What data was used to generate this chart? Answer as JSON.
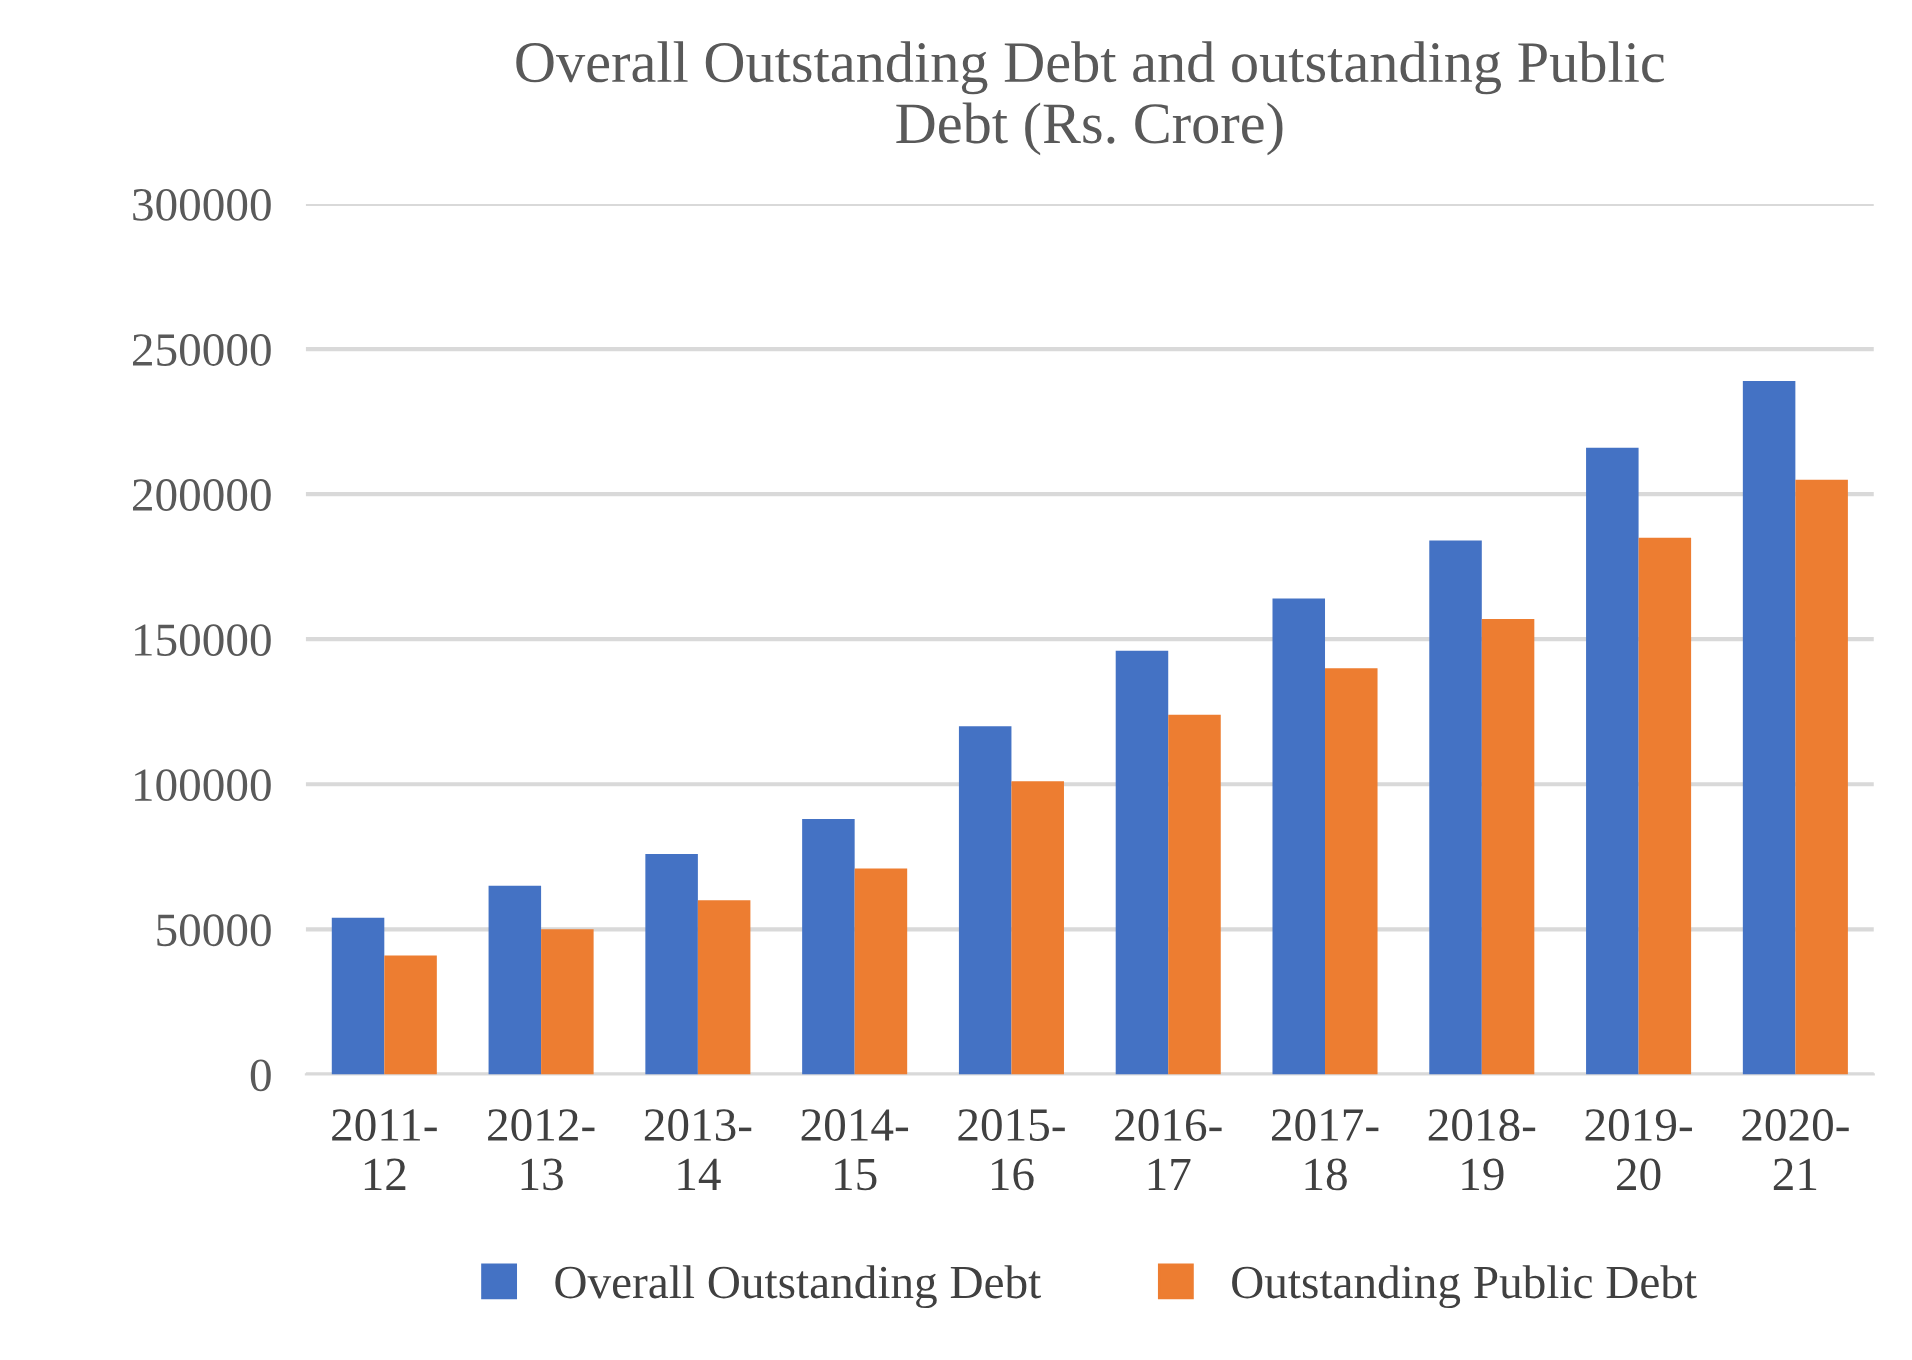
{
  "chart_data": {
    "type": "bar",
    "title": "Overall Outstanding Debt and outstanding Public\nDebt (Rs. Crore)",
    "categories": [
      "2011-\n12",
      "2012-\n13",
      "2013-\n14",
      "2014-\n15",
      "2015-\n16",
      "2016-\n17",
      "2017-\n18",
      "2018-\n19",
      "2019-\n20",
      "2020-\n21"
    ],
    "series": [
      {
        "name": "Overall Outstanding Debt",
        "color": "#4472c4",
        "values": [
          54000,
          65000,
          76000,
          88000,
          120000,
          146000,
          164000,
          184000,
          216000,
          239000
        ]
      },
      {
        "name": "Outstanding Public Debt",
        "color": "#ed7d31",
        "values": [
          41000,
          50000,
          60000,
          71000,
          101000,
          124000,
          140000,
          157000,
          185000,
          205000
        ]
      }
    ],
    "ylim": [
      0,
      300000
    ],
    "yticks": [
      0,
      50000,
      100000,
      150000,
      200000,
      250000,
      300000
    ],
    "grid": "y",
    "legend": "bottom"
  }
}
